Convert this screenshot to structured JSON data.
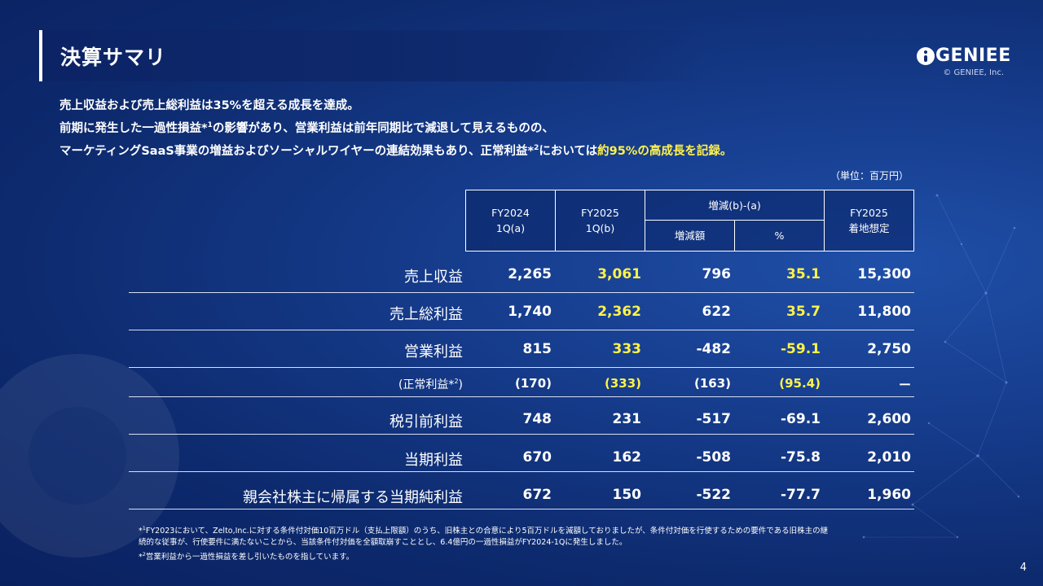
{
  "title": "決算サマリ",
  "logo": {
    "name": "GENIEE",
    "copyright": "© GENIEE, Inc."
  },
  "summary": {
    "line1": "売上収益および売上総利益は35%を超える成長を達成。",
    "line2_a": "前期に発生した一過性損益*",
    "line2_sup": "1",
    "line2_b": "の影響があり、営業利益は前年同期比で減退して見えるものの、",
    "line3_a": "マーケティングSaaS事業の増益およびソーシャルワイヤーの連結効果もあり、正常利益*",
    "line3_sup": "2",
    "line3_b": "においては",
    "line3_highlight": "約95%の高成長を記録。"
  },
  "unit": "（単位：百万円）",
  "headers": {
    "fy2024_line1": "FY2024",
    "fy2024_line2": "1Q(a)",
    "fy2025_line1": "FY2025",
    "fy2025_line2": "1Q(b)",
    "diff": "増減(b)-(a)",
    "diff_amount": "増減額",
    "diff_pct": "%",
    "forecast_line1": "FY2025",
    "forecast_line2": "着地想定"
  },
  "rows": [
    {
      "label": "売上収益",
      "a": "2,265",
      "b": "3,061",
      "diff": "796",
      "pct": "35.1",
      "forecast": "15,300"
    },
    {
      "label": "売上総利益",
      "a": "1,740",
      "b": "2,362",
      "diff": "622",
      "pct": "35.7",
      "forecast": "11,800"
    },
    {
      "label": "営業利益",
      "a": "815",
      "b": "333",
      "diff": "-482",
      "pct": "-59.1",
      "forecast": "2,750"
    },
    {
      "label": "(正常利益*",
      "label_sup": "2",
      "label_end": ")",
      "a": "(170)",
      "b": "(333)",
      "diff": "(163)",
      "pct": "(95.4)",
      "forecast": "ー"
    },
    {
      "label": "税引前利益",
      "a": "748",
      "b": "231",
      "diff": "-517",
      "pct": "-69.1",
      "forecast": "2,600"
    },
    {
      "label": "当期利益",
      "a": "670",
      "b": "162",
      "diff": "-508",
      "pct": "-75.8",
      "forecast": "2,010"
    },
    {
      "label": "親会社株主に帰属する当期純利益",
      "a": "672",
      "b": "150",
      "diff": "-522",
      "pct": "-77.7",
      "forecast": "1,960"
    }
  ],
  "colors": {
    "highlight": "#fff24a",
    "background": "#163c8c"
  },
  "footnotes": {
    "note1_mark": "*",
    "note1_sup": "1",
    "note1_line1": "FY2023において、Zelto,Inc.に対する条件付対価10百万ドル（支払上限額）のうち、旧株主との合意により5百万ドルを減額しておりましたが、条件付対価を行使するための要件である旧株主の継",
    "note1_line2": "続的な従事が、行使要件に満たないことから、当該条件付対価を全額取崩すこととし、6.4億円の一過性損益がFY2024-1Qに発生しました。",
    "note2_mark": "*",
    "note2_sup": "2",
    "note2_text": "営業利益から一過性損益を差し引いたものを指しています。"
  },
  "page_number": "4"
}
